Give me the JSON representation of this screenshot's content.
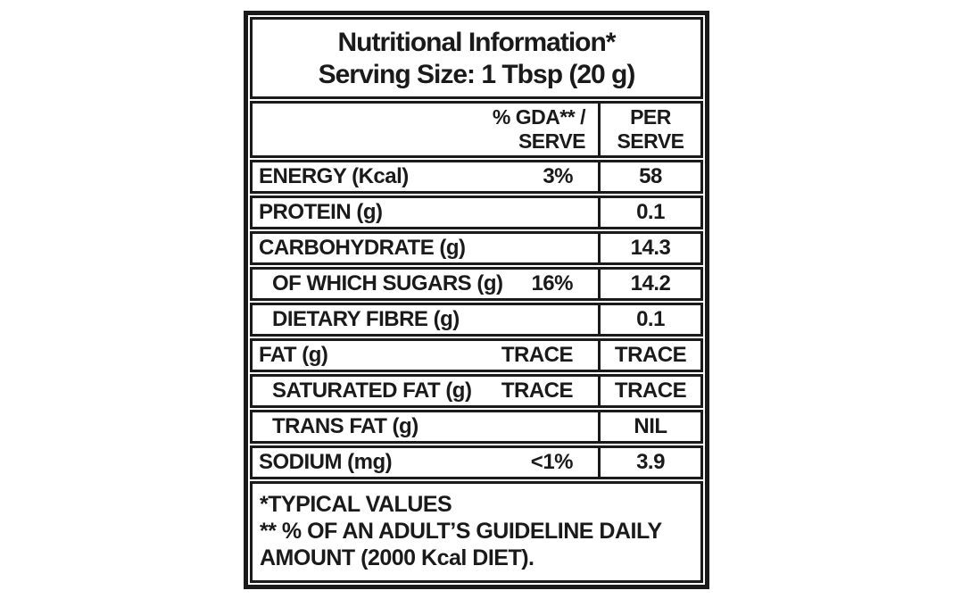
{
  "nutrition": {
    "title": {
      "line1": "Nutritional Information*",
      "line2": "Serving Size: 1 Tbsp (20 g)"
    },
    "header": {
      "gda_line1": "% GDA** /",
      "gda_line2": "SERVE",
      "per_line1": "PER",
      "per_line2": "SERVE"
    },
    "rows": [
      {
        "name": "ENERGY (Kcal)",
        "gda": "3%",
        "per_serve": "58"
      },
      {
        "name": "PROTEIN (g)",
        "gda": "",
        "per_serve": "0.1"
      },
      {
        "name": "CARBOHYDRATE (g)",
        "gda": "",
        "per_serve": "14.3"
      },
      {
        "name": "OF WHICH SUGARS (g)",
        "gda": "16%",
        "per_serve": "14.2"
      },
      {
        "name": "DIETARY FIBRE (g)",
        "gda": "",
        "per_serve": "0.1"
      },
      {
        "name": "FAT (g)",
        "gda": "TRACE",
        "per_serve": "TRACE"
      },
      {
        "name": "SATURATED FAT (g)",
        "gda": "TRACE",
        "per_serve": "TRACE"
      },
      {
        "name": "TRANS FAT (g)",
        "gda": "",
        "per_serve": "NIL"
      },
      {
        "name": "SODIUM (mg)",
        "gda": "<1%",
        "per_serve": "3.9"
      }
    ],
    "footnotes": {
      "lines": [
        "*TYPICAL VALUES",
        "** % OF AN ADULT’S GUIDELINE DAILY",
        "AMOUNT (2000 Kcal DIET)."
      ]
    },
    "colors": {
      "border": "#1a1a1a",
      "text": "#1a1a1a",
      "background": "#ffffff"
    }
  }
}
